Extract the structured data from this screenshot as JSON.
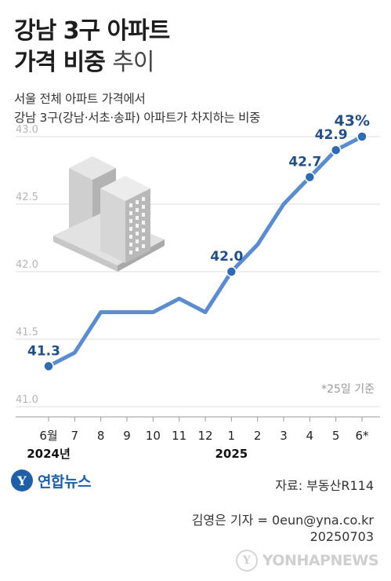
{
  "title": {
    "line1": "강남 3구 아파트",
    "line2_bold": "가격 비중",
    "line2_light": "추이"
  },
  "subtitle": {
    "line1": "서울 전체 아파트 가격에서",
    "line2": "강남 3구(강남·서초·송파) 아파트가 차지하는 비중"
  },
  "chart_data": {
    "type": "line",
    "categories": [
      "6월",
      "7",
      "8",
      "9",
      "10",
      "11",
      "12",
      "1",
      "2",
      "3",
      "4",
      "5",
      "6*"
    ],
    "year_labels": [
      {
        "text": "2024년",
        "category_index": 0
      },
      {
        "text": "2025",
        "category_index": 7
      }
    ],
    "values": [
      41.3,
      41.4,
      41.7,
      41.7,
      41.7,
      41.8,
      41.7,
      42.0,
      42.2,
      42.5,
      42.7,
      42.9,
      43.0
    ],
    "data_labels": [
      {
        "index": 0,
        "text": "41.3"
      },
      {
        "index": 7,
        "text": "42.0"
      },
      {
        "index": 10,
        "text": "42.7"
      },
      {
        "index": 11,
        "text": "42.9"
      },
      {
        "index": 12,
        "text": "43%"
      }
    ],
    "y_ticks": [
      "41.0",
      "41.5",
      "42.0",
      "42.5",
      "43.0"
    ],
    "ylim": [
      41.0,
      43.0
    ],
    "note": "*25일 기준",
    "grid": true,
    "colors": {
      "line": "#5b8ccf",
      "label": "#234f86",
      "marker": "#2f6bb5",
      "tick": "#b5b5b5"
    }
  },
  "source": "자료: 부동산R114",
  "logo_text": "연합뉴스",
  "reporter": {
    "line1": "김영은 기자 = 0eun@yna.co.kr",
    "line2": "20250703"
  },
  "watermark": "YONHAPNEWS"
}
